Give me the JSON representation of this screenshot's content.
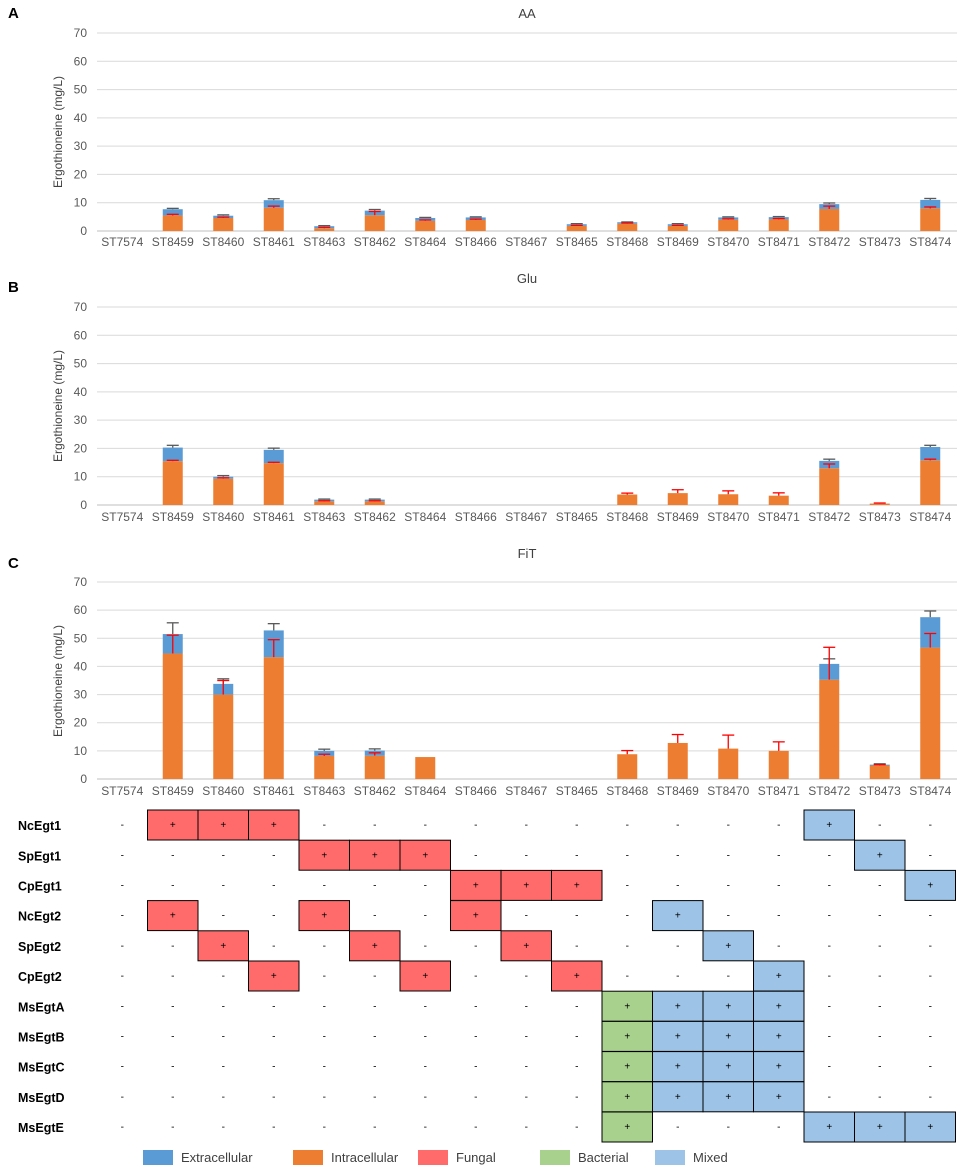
{
  "strains": [
    "ST7574",
    "ST8459",
    "ST8460",
    "ST8461",
    "ST8463",
    "ST8462",
    "ST8464",
    "ST8466",
    "ST8467",
    "ST8465",
    "ST8468",
    "ST8469",
    "ST8470",
    "ST8471",
    "ST8472",
    "ST8473",
    "ST8474"
  ],
  "chart_data": [
    {
      "type": "bar",
      "stacked": true,
      "panel": "A",
      "title": "AA",
      "ylabel": "Ergothioneine (mg/L)",
      "ylim": [
        0,
        70
      ],
      "yticks": [
        0,
        10,
        20,
        30,
        40,
        50,
        60,
        70
      ],
      "gridlines": true,
      "series": [
        {
          "name": "Intracellular",
          "values": [
            0,
            5.5,
            4.6,
            8.2,
            1.0,
            5.6,
            3.6,
            3.9,
            0,
            1.8,
            2.6,
            1.8,
            4.0,
            4.1,
            7.8,
            0,
            8.0
          ],
          "error": [
            0,
            0.4,
            0.3,
            0.6,
            0.3,
            1.3,
            0.3,
            0.3,
            0,
            0.2,
            0.2,
            0.2,
            0.3,
            0.3,
            1.0,
            0,
            0.5
          ]
        },
        {
          "name": "Extracellular",
          "values": [
            0,
            2.2,
            0.8,
            2.7,
            0.7,
            1.6,
            1.0,
            0.9,
            0,
            0.6,
            0.5,
            0.6,
            0.8,
            0.8,
            1.7,
            0,
            3.0
          ],
          "error": [
            0,
            0.3,
            0.3,
            0.5,
            0.2,
            0.4,
            0.2,
            0.2,
            0,
            0.2,
            0.1,
            0.2,
            0.2,
            0.2,
            0.4,
            0,
            0.5
          ]
        }
      ]
    },
    {
      "type": "bar",
      "stacked": true,
      "panel": "B",
      "title": "Glu",
      "ylabel": "Ergothioneine (mg/L)",
      "ylim": [
        0,
        70
      ],
      "yticks": [
        0,
        10,
        20,
        30,
        40,
        50,
        60,
        70
      ],
      "gridlines": true,
      "series": [
        {
          "name": "Intracellular",
          "values": [
            0,
            15.5,
            9.3,
            14.8,
            1.3,
            1.3,
            0,
            0,
            0,
            0,
            3.7,
            4.2,
            3.8,
            3.3,
            13.0,
            0.5,
            15.8
          ],
          "error": [
            0,
            0.3,
            0.3,
            0.3,
            0.2,
            0.2,
            0,
            0,
            0,
            0,
            0.5,
            1.2,
            1.2,
            1.0,
            1.5,
            0.2,
            0.4
          ]
        },
        {
          "name": "Extracellular",
          "values": [
            0,
            4.8,
            0.7,
            4.7,
            0.6,
            0.6,
            0,
            0,
            0,
            0,
            0,
            0,
            0,
            0,
            2.6,
            0,
            4.7
          ],
          "error": [
            0,
            0.8,
            0.4,
            0.6,
            0.2,
            0.2,
            0,
            0,
            0,
            0,
            0,
            0,
            0,
            0,
            0.6,
            0,
            0.6
          ]
        }
      ]
    },
    {
      "type": "bar",
      "stacked": true,
      "panel": "C",
      "title": "FiT",
      "ylabel": "Ergothioneine (mg/L)",
      "ylim": [
        0,
        70
      ],
      "yticks": [
        0,
        10,
        20,
        30,
        40,
        50,
        60,
        70
      ],
      "gridlines": true,
      "series": [
        {
          "name": "Intracellular",
          "values": [
            0,
            44.6,
            30.0,
            43.3,
            8.2,
            8.3,
            7.8,
            0,
            0,
            0,
            8.8,
            12.8,
            10.8,
            10.0,
            35.3,
            4.8,
            46.7
          ],
          "error": [
            0,
            6.5,
            5.0,
            6.2,
            0.6,
            1.0,
            0,
            0,
            0,
            0,
            1.3,
            3.0,
            4.8,
            3.2,
            11.5,
            0.3,
            5.0
          ]
        },
        {
          "name": "Extracellular",
          "values": [
            0,
            6.9,
            3.8,
            9.5,
            1.8,
            1.8,
            0,
            0,
            0,
            0,
            0,
            0,
            0,
            0,
            5.6,
            0.3,
            10.8
          ],
          "error": [
            0,
            4.0,
            1.8,
            2.4,
            0.6,
            0.6,
            0,
            0,
            0,
            0,
            0,
            0.6,
            0.9,
            0.6,
            1.8,
            0.3,
            2.2
          ]
        }
      ]
    }
  ],
  "panels": [
    "A",
    "B",
    "C"
  ],
  "plus_sign": "+",
  "minus_sign": "-",
  "gene_table": {
    "rows": [
      {
        "gene": "NcEgt1",
        "cells": [
          "-",
          "F",
          "F",
          "F",
          "-",
          "-",
          "-",
          "-",
          "-",
          "-",
          "-",
          "-",
          "-",
          "-",
          "M",
          "-",
          "-"
        ]
      },
      {
        "gene": "SpEgt1",
        "cells": [
          "-",
          "-",
          "-",
          "-",
          "F",
          "F",
          "F",
          "-",
          "-",
          "-",
          "-",
          "-",
          "-",
          "-",
          "-",
          "M",
          "-"
        ]
      },
      {
        "gene": "CpEgt1",
        "cells": [
          "-",
          "-",
          "-",
          "-",
          "-",
          "-",
          "-",
          "F",
          "F",
          "F",
          "-",
          "-",
          "-",
          "-",
          "-",
          "-",
          "M"
        ]
      },
      {
        "gene": "NcEgt2",
        "cells": [
          "-",
          "F",
          "-",
          "-",
          "F",
          "-",
          "-",
          "F",
          "-",
          "-",
          "-",
          "M",
          "-",
          "-",
          "-",
          "-",
          "-"
        ]
      },
      {
        "gene": "SpEgt2",
        "cells": [
          "-",
          "-",
          "F",
          "-",
          "-",
          "F",
          "-",
          "-",
          "F",
          "-",
          "-",
          "-",
          "M",
          "-",
          "-",
          "-",
          "-"
        ]
      },
      {
        "gene": "CpEgt2",
        "cells": [
          "-",
          "-",
          "-",
          "F",
          "-",
          "-",
          "F",
          "-",
          "-",
          "F",
          "-",
          "-",
          "-",
          "M",
          "-",
          "-",
          "-"
        ]
      },
      {
        "gene": "MsEgtA",
        "cells": [
          "-",
          "-",
          "-",
          "-",
          "-",
          "-",
          "-",
          "-",
          "-",
          "-",
          "B",
          "M",
          "M",
          "M",
          "-",
          "-",
          "-"
        ]
      },
      {
        "gene": "MsEgtB",
        "cells": [
          "-",
          "-",
          "-",
          "-",
          "-",
          "-",
          "-",
          "-",
          "-",
          "-",
          "B",
          "M",
          "M",
          "M",
          "-",
          "-",
          "-"
        ]
      },
      {
        "gene": "MsEgtC",
        "cells": [
          "-",
          "-",
          "-",
          "-",
          "-",
          "-",
          "-",
          "-",
          "-",
          "-",
          "B",
          "M",
          "M",
          "M",
          "-",
          "-",
          "-"
        ]
      },
      {
        "gene": "MsEgtD",
        "cells": [
          "-",
          "-",
          "-",
          "-",
          "-",
          "-",
          "-",
          "-",
          "-",
          "-",
          "B",
          "M",
          "M",
          "M",
          "-",
          "-",
          "-"
        ]
      },
      {
        "gene": "MsEgtE",
        "cells": [
          "-",
          "-",
          "-",
          "-",
          "-",
          "-",
          "-",
          "-",
          "-",
          "-",
          "B",
          "-",
          "-",
          "-",
          "M",
          "M",
          "M"
        ]
      }
    ],
    "categories": {
      "F": "Fungal",
      "B": "Bacterial",
      "M": "Mixed"
    }
  },
  "legend": [
    {
      "label": "Extracellular",
      "color": "#5B9BD5"
    },
    {
      "label": "Intracellular",
      "color": "#ED7D31"
    },
    {
      "label": "Fungal",
      "color": "#FF6B6B"
    },
    {
      "label": "Bacterial",
      "color": "#A9D18E"
    },
    {
      "label": "Mixed",
      "color": "#9DC3E6"
    }
  ],
  "colors": {
    "extracellular": "#5B9BD5",
    "intracellular": "#ED7D31",
    "fungal": "#FF6B6B",
    "bacterial": "#A9D18E",
    "mixed": "#9DC3E6",
    "error_intra": "#FF0000",
    "error_extra": "#595959",
    "grid": "#D9D9D9",
    "axis": "#BFBFBF"
  }
}
